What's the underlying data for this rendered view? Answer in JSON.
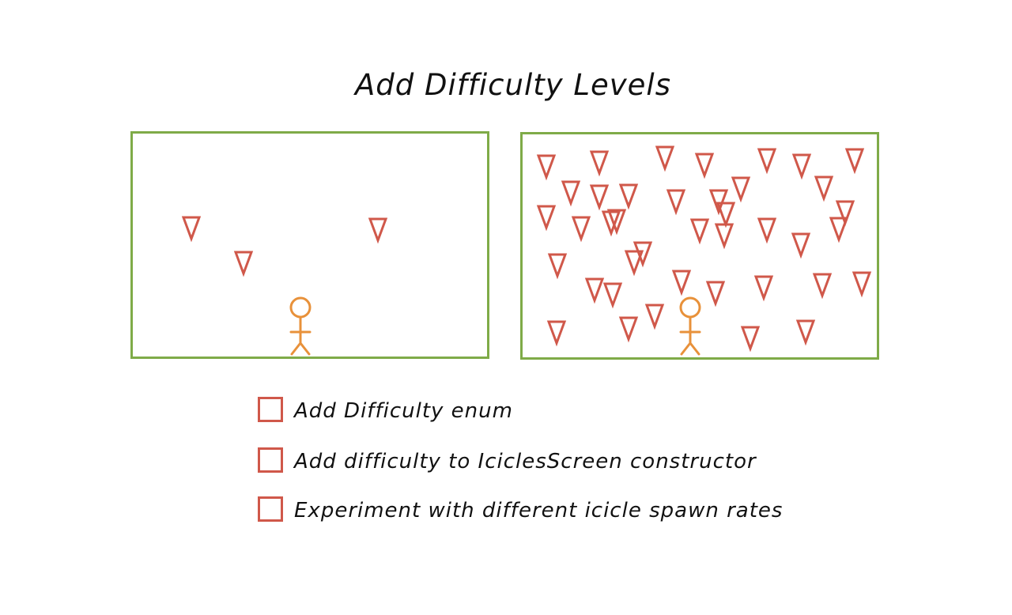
{
  "title": "Add Difficulty Levels",
  "colors": {
    "panel_border": "#7fab48",
    "icicle": "#d0584a",
    "player": "#e8913a",
    "checkbox": "#d0584a",
    "text": "#111111"
  },
  "checklist": [
    {
      "label": "Add Difficulty enum",
      "checked": false
    },
    {
      "label": "Add difficulty to IciclesScreen constructor",
      "checked": false
    },
    {
      "label": "Experiment with different icicle spawn rates",
      "checked": false
    }
  ]
}
